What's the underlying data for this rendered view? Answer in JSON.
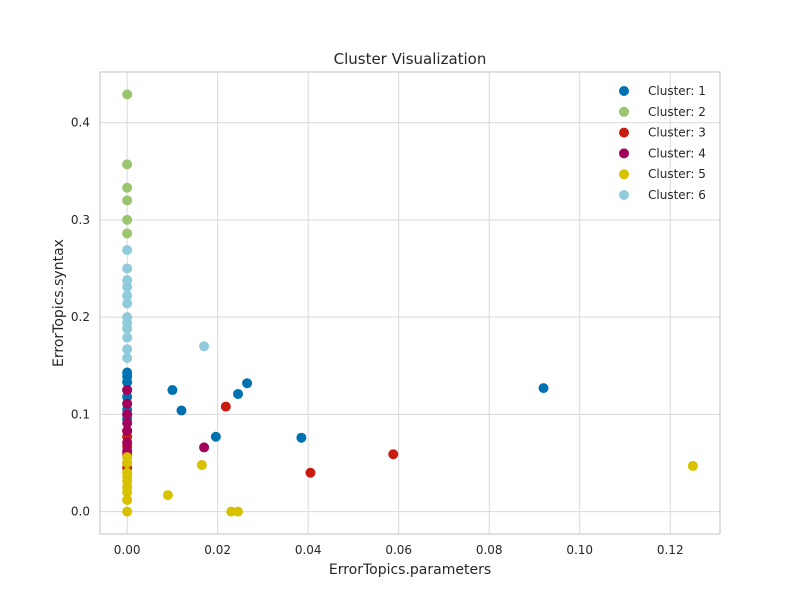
{
  "chart_data": {
    "type": "scatter",
    "title": "Cluster Visualization",
    "xlabel": "ErrorTopics.parameters",
    "ylabel": "ErrorTopics.syntax",
    "xlim": [
      -0.006,
      0.131
    ],
    "ylim": [
      -0.023,
      0.452
    ],
    "xticks": [
      0.0,
      0.02,
      0.04,
      0.06,
      0.08,
      0.1,
      0.12
    ],
    "xtick_labels": [
      "0.00",
      "0.02",
      "0.04",
      "0.06",
      "0.08",
      "0.10",
      "0.12"
    ],
    "yticks": [
      0.0,
      0.1,
      0.2,
      0.3,
      0.4
    ],
    "ytick_labels": [
      "0.0",
      "0.1",
      "0.2",
      "0.3",
      "0.4"
    ],
    "grid": true,
    "legend_position": "top-right",
    "series": [
      {
        "name": "Cluster: 1",
        "color": "#0072b2",
        "points": [
          [
            0.0,
            0.143
          ],
          [
            0.0,
            0.139
          ],
          [
            0.0,
            0.133
          ],
          [
            0.0,
            0.125
          ],
          [
            0.0,
            0.118
          ],
          [
            0.0,
            0.111
          ],
          [
            0.0,
            0.105
          ],
          [
            0.0,
            0.1
          ],
          [
            0.0,
            0.095
          ],
          [
            0.01,
            0.125
          ],
          [
            0.012,
            0.104
          ],
          [
            0.0196,
            0.077
          ],
          [
            0.0245,
            0.121
          ],
          [
            0.0265,
            0.132
          ],
          [
            0.0385,
            0.076
          ],
          [
            0.092,
            0.127
          ]
        ]
      },
      {
        "name": "Cluster: 2",
        "color": "#9bc46f",
        "points": [
          [
            0.0,
            0.429
          ],
          [
            0.0,
            0.357
          ],
          [
            0.0,
            0.333
          ],
          [
            0.0,
            0.32
          ],
          [
            0.0,
            0.3
          ],
          [
            0.0,
            0.286
          ]
        ]
      },
      {
        "name": "Cluster: 3",
        "color": "#c91c10",
        "points": [
          [
            0.0,
            0.083
          ],
          [
            0.0,
            0.077
          ],
          [
            0.0,
            0.067
          ],
          [
            0.0,
            0.059
          ],
          [
            0.0,
            0.05
          ],
          [
            0.0,
            0.045
          ],
          [
            0.0218,
            0.108
          ],
          [
            0.0405,
            0.04
          ],
          [
            0.0588,
            0.059
          ]
        ]
      },
      {
        "name": "Cluster: 4",
        "color": "#a3005c",
        "points": [
          [
            0.0,
            0.125
          ],
          [
            0.0,
            0.111
          ],
          [
            0.0,
            0.1
          ],
          [
            0.0,
            0.091
          ],
          [
            0.0,
            0.083
          ],
          [
            0.0,
            0.071
          ],
          [
            0.0,
            0.062
          ],
          [
            0.017,
            0.066
          ]
        ]
      },
      {
        "name": "Cluster: 5",
        "color": "#d8c200",
        "points": [
          [
            0.0,
            0.056
          ],
          [
            0.0,
            0.05
          ],
          [
            0.0,
            0.04
          ],
          [
            0.0,
            0.036
          ],
          [
            0.0,
            0.031
          ],
          [
            0.0,
            0.025
          ],
          [
            0.0,
            0.02
          ],
          [
            0.0,
            0.012
          ],
          [
            0.0,
            0.0
          ],
          [
            0.009,
            0.017
          ],
          [
            0.0165,
            0.048
          ],
          [
            0.023,
            0.0
          ],
          [
            0.0245,
            0.0
          ],
          [
            0.125,
            0.047
          ]
        ]
      },
      {
        "name": "Cluster: 6",
        "color": "#8fcbdb",
        "points": [
          [
            0.0,
            0.269
          ],
          [
            0.0,
            0.25
          ],
          [
            0.0,
            0.238
          ],
          [
            0.0,
            0.231
          ],
          [
            0.0,
            0.222
          ],
          [
            0.0,
            0.214
          ],
          [
            0.0,
            0.2
          ],
          [
            0.0,
            0.194
          ],
          [
            0.0,
            0.188
          ],
          [
            0.0,
            0.179
          ],
          [
            0.0,
            0.167
          ],
          [
            0.0,
            0.158
          ],
          [
            0.017,
            0.17
          ]
        ]
      }
    ]
  }
}
